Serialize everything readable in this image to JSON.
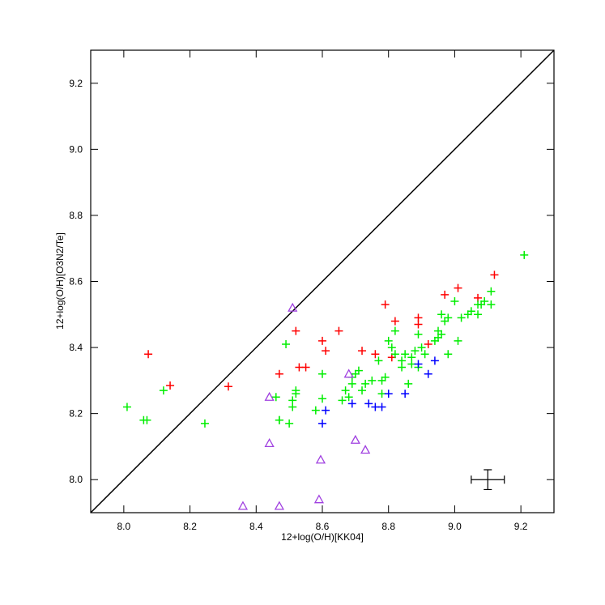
{
  "chart_data": {
    "type": "scatter",
    "xlabel": "12+log(O/H)[KK04]",
    "ylabel": "12+log(O/H)[O3N2/Te]",
    "xlim": [
      7.9,
      9.3
    ],
    "ylim": [
      7.9,
      9.3
    ],
    "xticks": [
      {
        "value": 8.0,
        "label": "8.0"
      },
      {
        "value": 8.2,
        "label": "8.2"
      },
      {
        "value": 8.4,
        "label": "8.4"
      },
      {
        "value": 8.6,
        "label": "8.6"
      },
      {
        "value": 8.8,
        "label": "8.8"
      },
      {
        "value": 9.0,
        "label": "9.0"
      },
      {
        "value": 9.2,
        "label": "9.2"
      }
    ],
    "yticks": [
      {
        "value": 8.0,
        "label": "8.0"
      },
      {
        "value": 8.2,
        "label": "8.2"
      },
      {
        "value": 8.4,
        "label": "8.4"
      },
      {
        "value": 8.6,
        "label": "8.6"
      },
      {
        "value": 8.8,
        "label": "8.8"
      },
      {
        "value": 9.0,
        "label": "9.0"
      },
      {
        "value": 9.2,
        "label": "9.2"
      }
    ],
    "series": [
      {
        "color": "#ff0000",
        "marker": "plus",
        "x": [
          8.074,
          8.14,
          8.316,
          8.47,
          8.53,
          8.55,
          8.52,
          8.6,
          8.61,
          8.65,
          8.72,
          8.76,
          8.79,
          8.82,
          8.81,
          8.89,
          8.89,
          8.92,
          8.97,
          9.01,
          9.07,
          9.12
        ],
        "y": [
          8.38,
          8.285,
          8.282,
          8.32,
          8.34,
          8.34,
          8.45,
          8.42,
          8.39,
          8.45,
          8.39,
          8.38,
          8.53,
          8.48,
          8.37,
          8.47,
          8.49,
          8.41,
          8.56,
          8.58,
          8.55,
          8.62
        ]
      },
      {
        "color": "#00ee00",
        "marker": "plus",
        "x": [
          8.01,
          8.06,
          8.07,
          8.12,
          8.245,
          8.46,
          8.47,
          8.47,
          8.49,
          8.5,
          8.51,
          8.51,
          8.52,
          8.52,
          8.58,
          8.6,
          8.6,
          8.66,
          8.67,
          8.68,
          8.69,
          8.69,
          8.7,
          8.71,
          8.72,
          8.73,
          8.75,
          8.77,
          8.78,
          8.78,
          8.79,
          8.8,
          8.81,
          8.82,
          8.82,
          8.84,
          8.84,
          8.85,
          8.86,
          8.87,
          8.87,
          8.88,
          8.89,
          8.89,
          8.9,
          8.91,
          8.94,
          8.95,
          8.95,
          8.96,
          8.96,
          8.97,
          8.98,
          8.98,
          9.0,
          9.01,
          9.02,
          9.04,
          9.05,
          9.07,
          9.07,
          9.08,
          9.09,
          9.11,
          9.11,
          9.21
        ],
        "y": [
          8.22,
          8.18,
          8.18,
          8.27,
          8.17,
          8.25,
          8.18,
          8.18,
          8.41,
          8.17,
          8.24,
          8.22,
          8.27,
          8.26,
          8.21,
          8.245,
          8.32,
          8.24,
          8.27,
          8.25,
          8.29,
          8.31,
          8.32,
          8.33,
          8.27,
          8.29,
          8.3,
          8.36,
          8.26,
          8.3,
          8.31,
          8.42,
          8.4,
          8.38,
          8.45,
          8.34,
          8.36,
          8.38,
          8.29,
          8.35,
          8.37,
          8.39,
          8.44,
          8.34,
          8.4,
          8.38,
          8.42,
          8.45,
          8.43,
          8.5,
          8.44,
          8.48,
          8.49,
          8.38,
          8.54,
          8.42,
          8.49,
          8.5,
          8.51,
          8.53,
          8.5,
          8.53,
          8.54,
          8.57,
          8.53,
          8.68
        ]
      },
      {
        "color": "#0000ff",
        "marker": "plus",
        "x": [
          8.6,
          8.61,
          8.69,
          8.74,
          8.76,
          8.78,
          8.8,
          8.85,
          8.89,
          8.92,
          8.94
        ],
        "y": [
          8.17,
          8.21,
          8.23,
          8.23,
          8.22,
          8.22,
          8.26,
          8.26,
          8.35,
          8.32,
          8.36
        ]
      },
      {
        "color": "#a040e0",
        "marker": "triangle",
        "x": [
          8.51,
          8.44,
          8.44,
          8.36,
          8.47,
          8.595,
          8.59,
          8.68,
          8.7,
          8.73
        ],
        "y": [
          8.52,
          8.25,
          8.11,
          7.92,
          7.92,
          8.06,
          7.94,
          8.32,
          8.12,
          8.09
        ]
      }
    ],
    "error_bar": {
      "x": 9.1,
      "y": 8.0,
      "xerr": 0.05,
      "yerr": 0.03
    }
  }
}
